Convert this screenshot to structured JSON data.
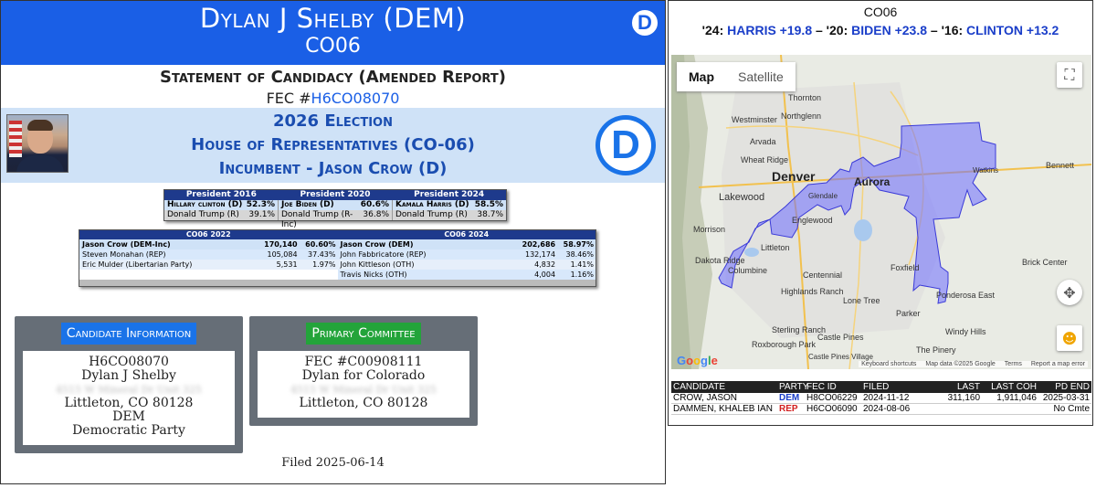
{
  "header": {
    "candidate_name": "Dylan J Shelby (DEM)",
    "district": "CO06",
    "report_title": "Statement of Candidacy (Amended Report)",
    "fec_prefix": "FEC #",
    "fec_id": "H6CO08070",
    "party_logo_letter": "D"
  },
  "election": {
    "year_line": "2026 Election",
    "office_line": "House of Representatives (CO-06)",
    "incumbent_line": "Incumbent - Jason Crow (D)"
  },
  "presidential": {
    "headers": [
      "President 2016",
      "President 2020",
      "President 2024"
    ],
    "row1": [
      {
        "cand": "Hillary clinton (D)",
        "pct": "52.3%"
      },
      {
        "cand": "Joe Biden (D)",
        "pct": "60.6%"
      },
      {
        "cand": "Kamala Harris (D)",
        "pct": "58.5%"
      }
    ],
    "row2": [
      {
        "cand": "Donald Trump (R)",
        "pct": "39.1%"
      },
      {
        "cand": "Donald Trump (R-Inc)",
        "pct": "36.8%"
      },
      {
        "cand": "Donald Trump (R)",
        "pct": "38.7%"
      }
    ]
  },
  "results": {
    "header_left": "CO06 2022",
    "header_right": "CO06 2024",
    "rows": [
      {
        "l": {
          "c": "Jason Crow (DEM-Inc)",
          "v": "170,140",
          "p": "60.60%"
        },
        "r": {
          "c": "Jason Crow (DEM)",
          "v": "202,686",
          "p": "58.97%"
        }
      },
      {
        "l": {
          "c": "Steven Monahan (REP)",
          "v": "105,084",
          "p": "37.43%"
        },
        "r": {
          "c": "John Fabbricatore (REP)",
          "v": "132,174",
          "p": "38.46%"
        }
      },
      {
        "l": {
          "c": "Eric Mulder (Libertarian Party)",
          "v": "5,531",
          "p": "1.97%"
        },
        "r": {
          "c": "John Kittleson (OTH)",
          "v": "4,832",
          "p": "1.41%"
        }
      },
      {
        "l": {
          "c": "",
          "v": "",
          "p": ""
        },
        "r": {
          "c": "Travis Nicks (OTH)",
          "v": "4,004",
          "p": "1.16%"
        }
      }
    ]
  },
  "candidate_info": {
    "title": "Candidate Information",
    "id": "H6CO08070",
    "name": "Dylan J Shelby",
    "address_blurred": "4515 W Mineral Dr Unit 325",
    "city": "Littleton, CO 80128",
    "party_code": "DEM",
    "party_name": "Democratic Party"
  },
  "primary_committee": {
    "title": "Primary Committee",
    "fec_id": "FEC #C00908111",
    "name": "Dylan for Colorado",
    "address_blurred": "4515 W Mineral Dr Unit 325",
    "city": "Littleton, CO 80128"
  },
  "filed": "Filed 2025-06-14",
  "right_panel": {
    "title": "CO06",
    "margins": [
      {
        "pre": "'24: ",
        "name": "HARRIS +19.8"
      },
      {
        "pre": " – '20: ",
        "name": "BIDEN +23.8"
      },
      {
        "pre": " – '16: ",
        "name": "CLINTON +13.2"
      }
    ],
    "map": {
      "tab_map": "Map",
      "tab_satellite": "Satellite",
      "labels": [
        "Thornton",
        "Northglenn",
        "Westminster",
        "Arvada",
        "Wheat Ridge",
        "Denver",
        "Aurora",
        "Lakewood",
        "Glendale",
        "Englewood",
        "Morrison",
        "Littleton",
        "Columbine",
        "Centennial",
        "Foxfield",
        "Highlands Ranch",
        "Lone Tree",
        "Parker",
        "Sterling Ranch",
        "Roxborough Park",
        "Castle Pines",
        "The Pinery",
        "Windy Hills",
        "Ponderosa East",
        "Brick Center",
        "Bennett",
        "Watkins",
        "Dakota Ridge",
        "Castle Pines Village"
      ],
      "google": "Google",
      "footer": [
        "Keyboard shortcuts",
        "Map data ©2025 Google",
        "Terms",
        "Report a map error"
      ]
    },
    "table": {
      "headers": [
        "CANDIDATE",
        "PARTY",
        "FEC ID",
        "FILED",
        "LAST RAISED",
        "LAST COH",
        "PD END"
      ],
      "rows": [
        {
          "candidate": "CROW, JASON",
          "party": "DEM",
          "fec": "H8CO06229",
          "filed": "2024-11-12",
          "raised": "311,160",
          "coh": "1,911,046",
          "pd": "2025-03-31"
        },
        {
          "candidate": "DAMMEN, KHALEB IAN",
          "party": "REP",
          "fec": "H6CO06090",
          "filed": "2024-08-06",
          "raised": "",
          "coh": "",
          "pd": "No Cmte"
        }
      ]
    }
  },
  "colors": {
    "dem_blue": "#1a5fe6",
    "rep_red": "#d21f1f",
    "district_fill": "#6e6eff"
  }
}
